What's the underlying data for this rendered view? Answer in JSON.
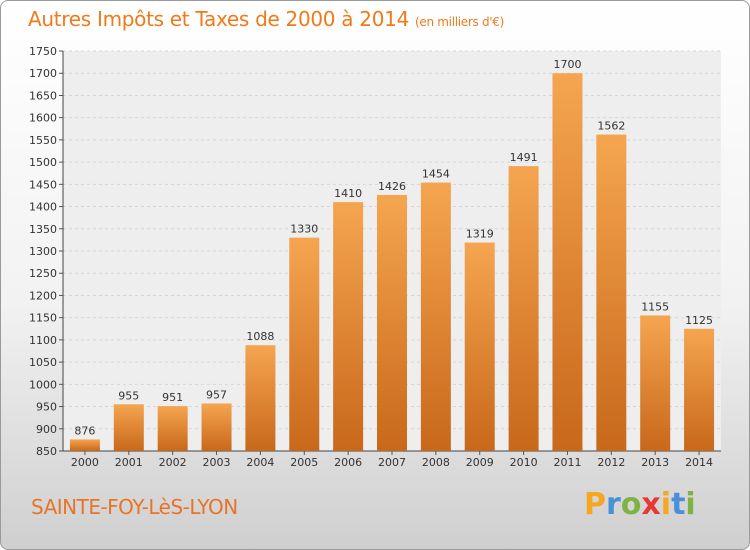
{
  "header": {
    "title": "Autres Impôts et Taxes de 2000 à 2014",
    "unit": "(en milliers d'€)"
  },
  "footer": {
    "place": "SAINTE-FOY-LèS-LYON",
    "logo_letters": [
      "P",
      "r",
      "o",
      "x",
      "i",
      "t",
      "i"
    ],
    "logo_colors": [
      "#f5a623",
      "#4a90d9",
      "#7cb342",
      "#e53935",
      "#f5a623",
      "#4a90d9",
      "#7cb342"
    ]
  },
  "colors": {
    "bar_top": "#f5a550",
    "bar_bottom": "#c8681a",
    "title": "#f07a1a",
    "place": "#e8742a"
  },
  "chart_data": {
    "type": "bar",
    "categories": [
      "2000",
      "2001",
      "2002",
      "2003",
      "2004",
      "2005",
      "2006",
      "2007",
      "2008",
      "2009",
      "2010",
      "2011",
      "2012",
      "2013",
      "2014"
    ],
    "values": [
      876,
      955,
      951,
      957,
      1088,
      1330,
      1410,
      1426,
      1454,
      1319,
      1491,
      1700,
      1562,
      1155,
      1125
    ],
    "ylim": [
      850,
      1750
    ],
    "yticks": [
      850,
      900,
      950,
      1000,
      1050,
      1100,
      1150,
      1200,
      1250,
      1300,
      1350,
      1400,
      1450,
      1500,
      1550,
      1600,
      1650,
      1700,
      1750
    ],
    "grid": true,
    "legend": "none"
  }
}
